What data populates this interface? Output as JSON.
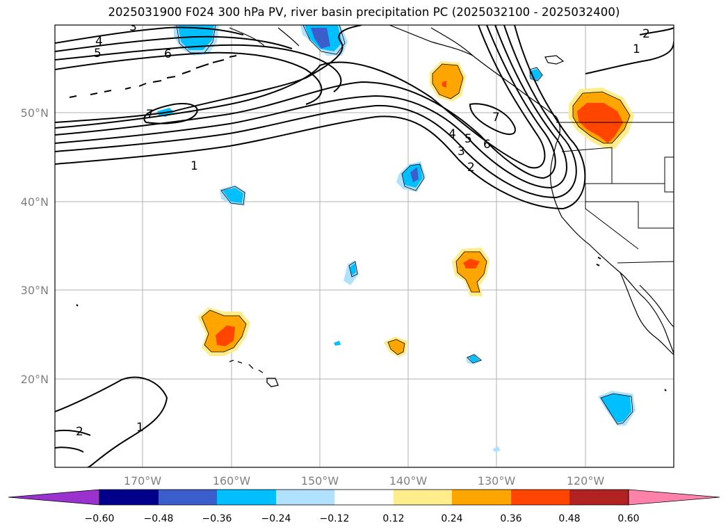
{
  "title": "2025031900 F024 300 hPa PV, river basin precipitation PC (2025032100 - 2025032400)",
  "longitude_labels": [
    "170°W",
    "160°W",
    "150°W",
    "140°W",
    "130°W",
    "120°W"
  ],
  "latitude_labels": [
    "50°N",
    "40°N",
    "30°N",
    "20°N"
  ],
  "colorbar": {
    "tick_labels": [
      "−0.60",
      "−0.48",
      "−0.36",
      "−0.24",
      "−0.12",
      "0.12",
      "0.24",
      "0.36",
      "0.48",
      "0.60"
    ],
    "colors": [
      "#9a32cd",
      "#00008b",
      "#3a5fcd",
      "#00bfff",
      "#b0e2ff",
      "#ffffff",
      "#ffec8b",
      "#ffa500",
      "#ff4500",
      "#b22222",
      "#ff82ab"
    ]
  },
  "pv_contour_labels": [
    "1",
    "2",
    "3",
    "4",
    "5",
    "6",
    "7"
  ],
  "colors": {
    "gridline": "#b0b0b0",
    "coast": "#000000",
    "contour": "#000000"
  }
}
